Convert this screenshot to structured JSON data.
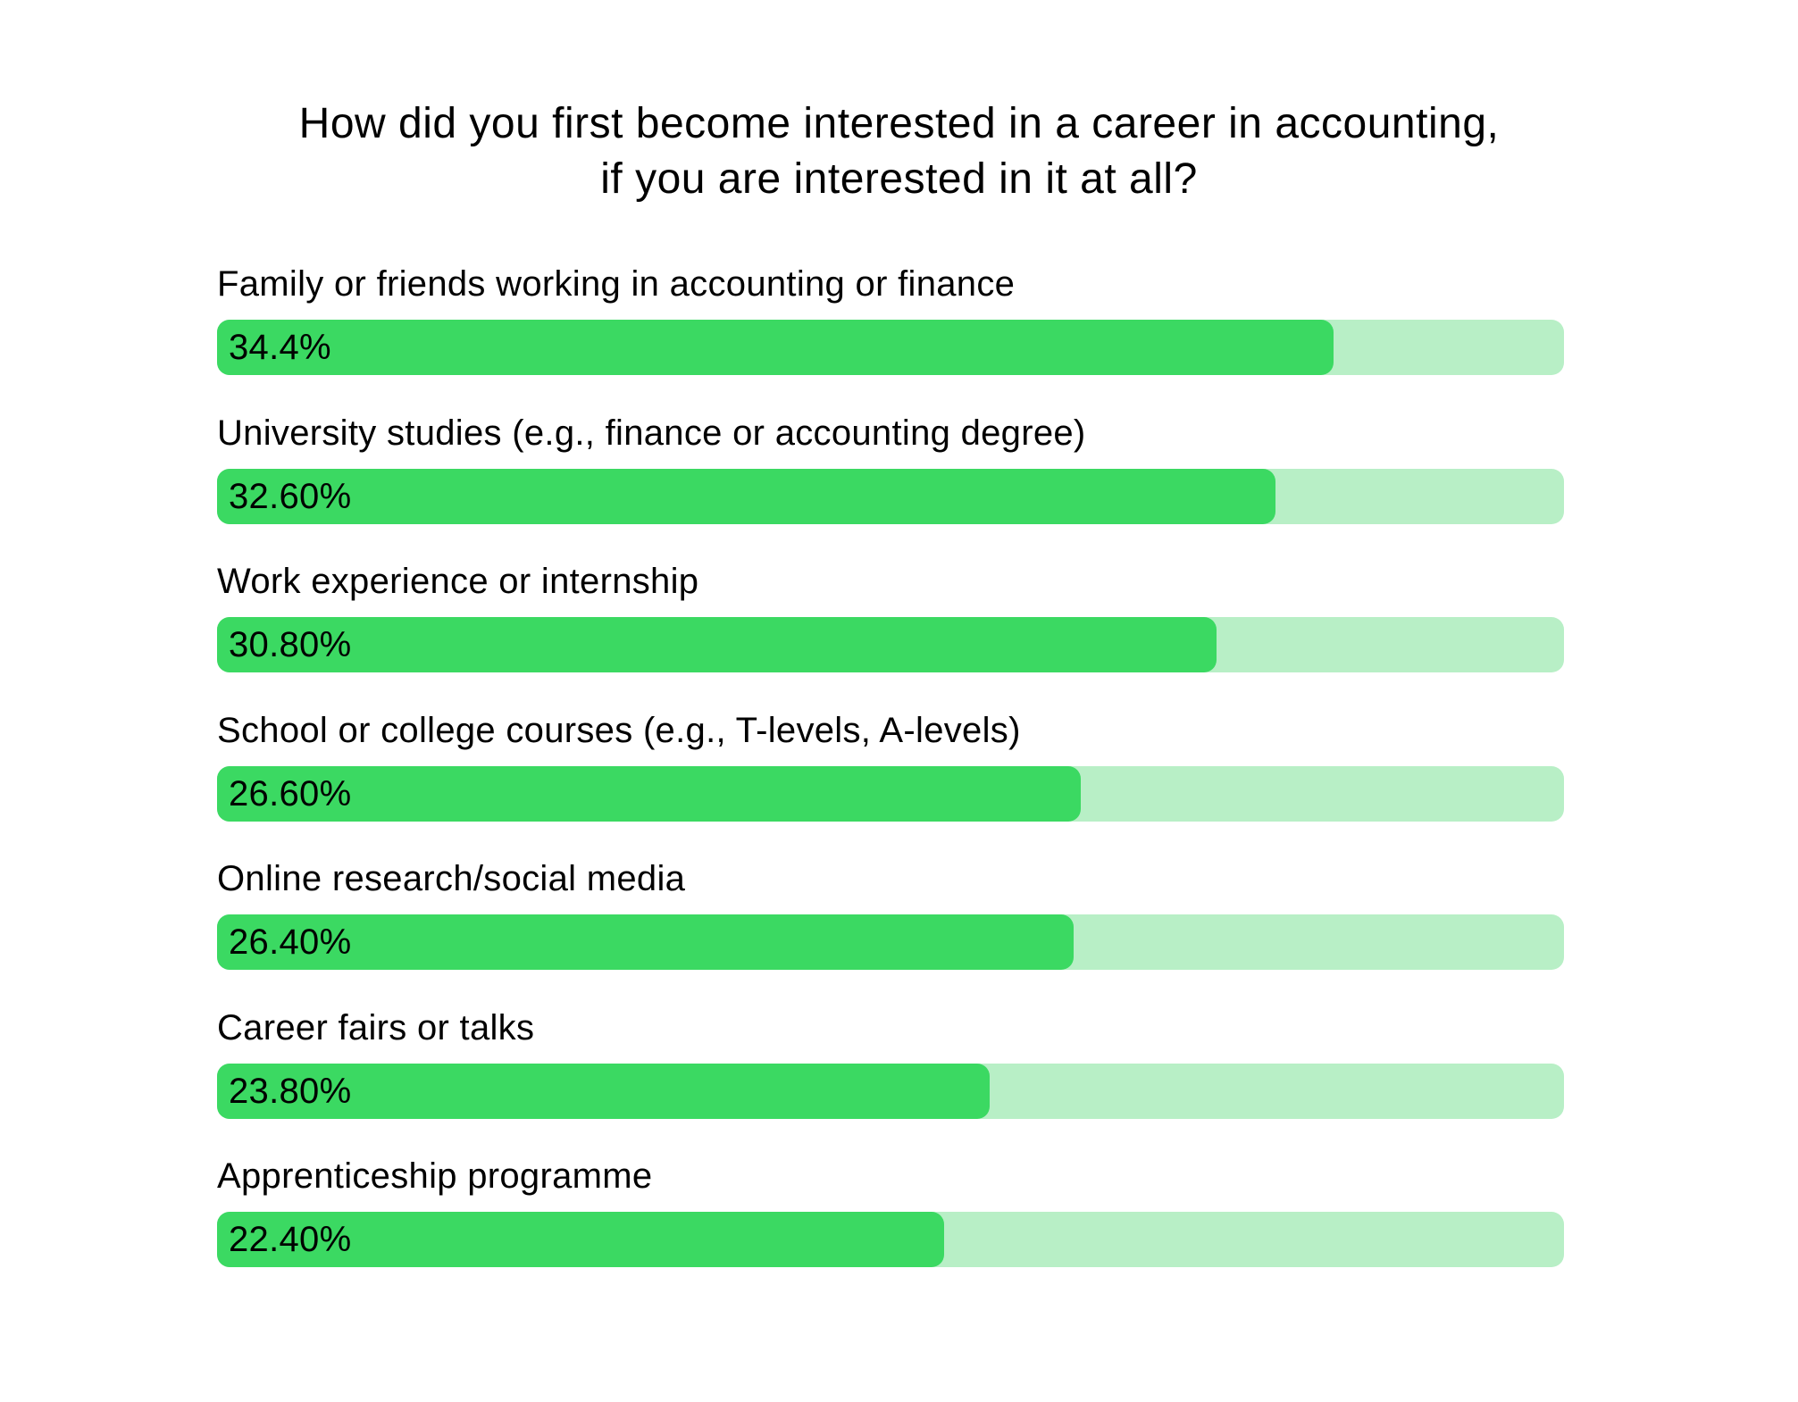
{
  "colors": {
    "bar_fill": "#3bd962",
    "bar_track": "#b8efc6",
    "text": "#000000",
    "background": "#ffffff"
  },
  "chart_data": {
    "type": "bar",
    "orientation": "horizontal",
    "title_lines": [
      "How did you first become interested in a career in accounting,",
      "if you are interested in it at all?"
    ],
    "categories": [
      "Family or friends working in accounting or finance",
      "University studies (e.g., finance or accounting degree)",
      "Work experience or internship",
      "School or college courses (e.g., T-levels, A-levels)",
      "Online research/social media",
      "Career fairs or talks",
      "Apprenticeship programme"
    ],
    "values": [
      34.4,
      32.6,
      30.8,
      26.6,
      26.4,
      23.8,
      22.4
    ],
    "value_labels": [
      "34.4%",
      "32.60%",
      "30.80%",
      "26.60%",
      "26.40%",
      "23.80%",
      "22.40%"
    ],
    "xlim": [
      0,
      41.5
    ],
    "grid": false,
    "legend": false
  }
}
